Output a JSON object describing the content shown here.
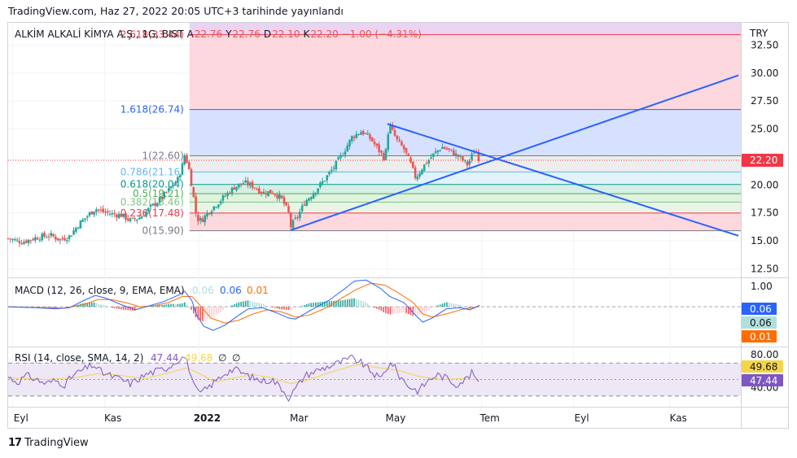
{
  "header": {
    "published": "TradingView.com, Haz 27, 2022 20:05 UTC+3 tarihinde yayınlandı"
  },
  "brand": {
    "logo": "17",
    "name": "TradingView"
  },
  "colors": {
    "up": "#26a69a",
    "down": "#ef5350",
    "trend": "#2962ff",
    "macd": "#2962ff",
    "signal": "#ff6d00",
    "rsi": "#7e57c2",
    "rsi_ma": "#f5d44a",
    "last_price_bg": "#f23645"
  },
  "chart_data": [
    {
      "type": "candlestick",
      "symbol_line": {
        "name": "ALKİM ALKALİ KİMYA A.Ş., 1G, BIST",
        "open_label": "A",
        "open": "22.76",
        "high_label": "Y",
        "high": "22.76",
        "low_label": "D",
        "low": "22.10",
        "close_label": "K",
        "close": "22.20",
        "change": "−1.00 (−4.31%)"
      },
      "currency": "TRY",
      "y_ticks": [
        "32.50",
        "30.00",
        "27.50",
        "25.00",
        "20.00",
        "17.50",
        "15.00",
        "12.50"
      ],
      "ylim": [
        11.8,
        34.5
      ],
      "last_price": "22.20",
      "x_ticks": [
        {
          "label": "Eyl",
          "x": 0.1
        },
        {
          "label": "Kas",
          "x": 2.05
        },
        {
          "label": "2022",
          "x": 4.05
        },
        {
          "label": "Mar",
          "x": 6.0
        },
        {
          "label": "May",
          "x": 8.05
        },
        {
          "label": "Tem",
          "x": 10.05
        },
        {
          "label": "Eyl",
          "x": 12.0
        },
        {
          "label": "Kas",
          "x": 14.05
        }
      ],
      "x_unit": "months since Sep 1 2021",
      "xlim": [
        0.0,
        15.55
      ],
      "close_path": [
        [
          0.0,
          15.2
        ],
        [
          0.3,
          14.9
        ],
        [
          0.6,
          15.3
        ],
        [
          0.9,
          15.5
        ],
        [
          1.1,
          15.1
        ],
        [
          1.3,
          15.4
        ],
        [
          1.5,
          16.5
        ],
        [
          1.7,
          17.3
        ],
        [
          1.85,
          17.9
        ],
        [
          2.0,
          17.6
        ],
        [
          2.2,
          17.4
        ],
        [
          2.4,
          17.3
        ],
        [
          2.6,
          16.8
        ],
        [
          2.8,
          17.1
        ],
        [
          3.0,
          17.9
        ],
        [
          3.2,
          18.6
        ],
        [
          3.4,
          19.5
        ],
        [
          3.6,
          20.5
        ],
        [
          3.7,
          21.8
        ],
        [
          3.75,
          22.8
        ],
        [
          3.85,
          21.2
        ],
        [
          3.95,
          18.5
        ],
        [
          4.0,
          17.0
        ],
        [
          4.1,
          16.8
        ],
        [
          4.25,
          17.6
        ],
        [
          4.4,
          18.2
        ],
        [
          4.6,
          19.0
        ],
        [
          4.8,
          19.8
        ],
        [
          5.0,
          20.2
        ],
        [
          5.2,
          19.9
        ],
        [
          5.4,
          19.3
        ],
        [
          5.6,
          19.4
        ],
        [
          5.8,
          18.8
        ],
        [
          5.95,
          17.5
        ],
        [
          6.0,
          16.3
        ],
        [
          6.15,
          17.2
        ],
        [
          6.3,
          18.5
        ],
        [
          6.5,
          19.4
        ],
        [
          6.7,
          20.4
        ],
        [
          6.9,
          21.5
        ],
        [
          7.1,
          22.8
        ],
        [
          7.3,
          24.3
        ],
        [
          7.5,
          24.8
        ],
        [
          7.7,
          24.1
        ],
        [
          7.9,
          22.9
        ],
        [
          8.0,
          22.3
        ],
        [
          8.05,
          24.5
        ],
        [
          8.1,
          25.3
        ],
        [
          8.25,
          24.0
        ],
        [
          8.4,
          23.2
        ],
        [
          8.55,
          21.8
        ],
        [
          8.65,
          20.6
        ],
        [
          8.8,
          21.6
        ],
        [
          9.0,
          22.6
        ],
        [
          9.2,
          23.4
        ],
        [
          9.4,
          23.0
        ],
        [
          9.6,
          22.4
        ],
        [
          9.75,
          21.8
        ],
        [
          9.9,
          23.1
        ],
        [
          9.95,
          22.9
        ],
        [
          10.0,
          22.2
        ]
      ],
      "fibonacci": [
        {
          "label": "2.618(33.44)",
          "value": 33.44,
          "line": "#f23645",
          "fill": "#ead4f2"
        },
        {
          "label": "1.618(26.74)",
          "value": 26.74,
          "line": "#2962ff",
          "fill": "#fdd8de"
        },
        {
          "label": "1(22.60)",
          "value": 22.6,
          "line": "#787b86",
          "fill": "#d6e1ff"
        },
        {
          "label": "0.786(21.16)",
          "value": 21.16,
          "line": "#64b5f6",
          "fill": "#ededed"
        },
        {
          "label": "0.618(20.04)",
          "value": 20.04,
          "line": "#089981",
          "fill": "#e3f3fb"
        },
        {
          "label": "0.5(19.21)",
          "value": 19.21,
          "line": "#4caf50",
          "fill": "#d6efe6"
        },
        {
          "label": "0.382(18.46)",
          "value": 18.46,
          "line": "#81c784",
          "fill": "#dff2de"
        },
        {
          "label": "0.236(17.48)",
          "value": 17.48,
          "line": "#f23645",
          "fill": "#e8f5e6"
        },
        {
          "label": "0(15.90)",
          "value": 15.9,
          "line": "#787b86",
          "fill": "#fdd8de"
        }
      ],
      "fib_x_start": 3.85,
      "trend_lines": [
        {
          "from": [
            6.0,
            15.95
          ],
          "to": [
            15.5,
            29.8
          ]
        },
        {
          "from": [
            8.05,
            25.45
          ],
          "to": [
            15.5,
            15.45
          ]
        }
      ]
    },
    {
      "type": "line",
      "title": "MACD (12, 26, close, 9, EMA, EMA)",
      "values": {
        "histogram": "0.06",
        "macd": "0.06",
        "signal": "0.01"
      },
      "y_ticks": [
        "1.00"
      ],
      "ylim": [
        -1.9,
        1.35
      ],
      "last_values": [
        {
          "value": "0.06",
          "bg": "#2962ff",
          "color": "#ffffff"
        },
        {
          "value": "0.06",
          "bg": "#b2dfdb",
          "color": "#131722"
        },
        {
          "value": "0.01",
          "bg": "#ff6d00",
          "color": "#ffffff"
        }
      ],
      "macd_path": [
        [
          0.0,
          0.0
        ],
        [
          0.6,
          -0.05
        ],
        [
          1.0,
          -0.1
        ],
        [
          1.3,
          -0.05
        ],
        [
          1.6,
          0.3
        ],
        [
          1.85,
          0.55
        ],
        [
          2.1,
          0.4
        ],
        [
          2.4,
          0.1
        ],
        [
          2.7,
          -0.15
        ],
        [
          3.0,
          0.05
        ],
        [
          3.3,
          0.25
        ],
        [
          3.6,
          0.55
        ],
        [
          3.75,
          0.75
        ],
        [
          3.9,
          0.3
        ],
        [
          4.0,
          -0.4
        ],
        [
          4.15,
          -0.95
        ],
        [
          4.35,
          -1.15
        ],
        [
          4.6,
          -0.9
        ],
        [
          4.9,
          -0.4
        ],
        [
          5.1,
          -0.1
        ],
        [
          5.4,
          -0.05
        ],
        [
          5.7,
          -0.3
        ],
        [
          5.95,
          -0.55
        ],
        [
          6.1,
          -0.6
        ],
        [
          6.4,
          -0.2
        ],
        [
          6.8,
          0.3
        ],
        [
          7.1,
          0.8
        ],
        [
          7.35,
          1.25
        ],
        [
          7.6,
          1.3
        ],
        [
          7.9,
          0.9
        ],
        [
          8.1,
          0.5
        ],
        [
          8.4,
          0.2
        ],
        [
          8.6,
          -0.3
        ],
        [
          8.8,
          -0.75
        ],
        [
          9.0,
          -0.55
        ],
        [
          9.3,
          -0.1
        ],
        [
          9.6,
          -0.05
        ],
        [
          9.8,
          -0.15
        ],
        [
          10.0,
          0.06
        ]
      ],
      "signal_path": [
        [
          0.0,
          0.0
        ],
        [
          0.7,
          -0.05
        ],
        [
          1.2,
          -0.07
        ],
        [
          1.6,
          0.1
        ],
        [
          1.9,
          0.35
        ],
        [
          2.2,
          0.35
        ],
        [
          2.5,
          0.2
        ],
        [
          2.8,
          0.0
        ],
        [
          3.1,
          0.05
        ],
        [
          3.4,
          0.2
        ],
        [
          3.7,
          0.5
        ],
        [
          3.9,
          0.5
        ],
        [
          4.1,
          0.0
        ],
        [
          4.3,
          -0.55
        ],
        [
          4.6,
          -0.8
        ],
        [
          4.9,
          -0.65
        ],
        [
          5.2,
          -0.35
        ],
        [
          5.5,
          -0.15
        ],
        [
          5.8,
          -0.25
        ],
        [
          6.1,
          -0.5
        ],
        [
          6.4,
          -0.4
        ],
        [
          6.8,
          0.0
        ],
        [
          7.1,
          0.45
        ],
        [
          7.4,
          0.85
        ],
        [
          7.7,
          1.15
        ],
        [
          8.0,
          1.05
        ],
        [
          8.3,
          0.65
        ],
        [
          8.6,
          0.2
        ],
        [
          8.8,
          -0.35
        ],
        [
          9.0,
          -0.5
        ],
        [
          9.3,
          -0.35
        ],
        [
          9.6,
          -0.15
        ],
        [
          10.0,
          0.01
        ]
      ]
    },
    {
      "type": "line",
      "title": "RSI (14, close, SMA, 14, 2)",
      "values": {
        "rsi": "47.44",
        "ma": "49.68",
        "bb_upper": "∅",
        "bb_lower": "∅"
      },
      "y_ticks": [
        "80.00",
        "40.00"
      ],
      "ylim": [
        17,
        88
      ],
      "bands": [
        70,
        50,
        30
      ],
      "last_values": [
        {
          "value": "49.68",
          "bg": "#f5d44a",
          "color": "#131722"
        },
        {
          "value": "47.44",
          "bg": "#7e57c2",
          "color": "#ffffff"
        }
      ],
      "rsi_path": [
        [
          0.0,
          53
        ],
        [
          0.2,
          47
        ],
        [
          0.4,
          55
        ],
        [
          0.6,
          50
        ],
        [
          0.8,
          45
        ],
        [
          1.0,
          49
        ],
        [
          1.2,
          44
        ],
        [
          1.4,
          56
        ],
        [
          1.6,
          62
        ],
        [
          1.8,
          68
        ],
        [
          2.0,
          58
        ],
        [
          2.2,
          54
        ],
        [
          2.4,
          50
        ],
        [
          2.6,
          45
        ],
        [
          2.8,
          52
        ],
        [
          3.0,
          58
        ],
        [
          3.2,
          61
        ],
        [
          3.4,
          65
        ],
        [
          3.6,
          74
        ],
        [
          3.75,
          78
        ],
        [
          3.85,
          62
        ],
        [
          3.95,
          40
        ],
        [
          4.05,
          33
        ],
        [
          4.2,
          38
        ],
        [
          4.4,
          48
        ],
        [
          4.6,
          58
        ],
        [
          4.8,
          63
        ],
        [
          5.0,
          57
        ],
        [
          5.2,
          52
        ],
        [
          5.4,
          48
        ],
        [
          5.6,
          50
        ],
        [
          5.8,
          40
        ],
        [
          5.95,
          28
        ],
        [
          6.05,
          35
        ],
        [
          6.3,
          55
        ],
        [
          6.6,
          62
        ],
        [
          6.9,
          68
        ],
        [
          7.1,
          72
        ],
        [
          7.3,
          76
        ],
        [
          7.5,
          70
        ],
        [
          7.7,
          60
        ],
        [
          7.9,
          50
        ],
        [
          8.05,
          66
        ],
        [
          8.15,
          70
        ],
        [
          8.3,
          55
        ],
        [
          8.5,
          42
        ],
        [
          8.7,
          36
        ],
        [
          8.9,
          48
        ],
        [
          9.1,
          56
        ],
        [
          9.3,
          52
        ],
        [
          9.5,
          44
        ],
        [
          9.7,
          50
        ],
        [
          9.85,
          58
        ],
        [
          10.0,
          47.44
        ]
      ],
      "ma_path": [
        [
          0.0,
          52
        ],
        [
          0.8,
          50
        ],
        [
          1.4,
          52
        ],
        [
          1.9,
          57
        ],
        [
          2.4,
          55
        ],
        [
          2.9,
          51
        ],
        [
          3.4,
          58
        ],
        [
          3.8,
          64
        ],
        [
          4.1,
          56
        ],
        [
          4.4,
          47
        ],
        [
          4.8,
          52
        ],
        [
          5.2,
          56
        ],
        [
          5.6,
          52
        ],
        [
          6.0,
          45
        ],
        [
          6.4,
          50
        ],
        [
          6.9,
          60
        ],
        [
          7.4,
          68
        ],
        [
          7.9,
          64
        ],
        [
          8.3,
          61
        ],
        [
          8.7,
          54
        ],
        [
          9.2,
          50
        ],
        [
          9.6,
          51
        ],
        [
          10.0,
          49.68
        ]
      ]
    }
  ]
}
